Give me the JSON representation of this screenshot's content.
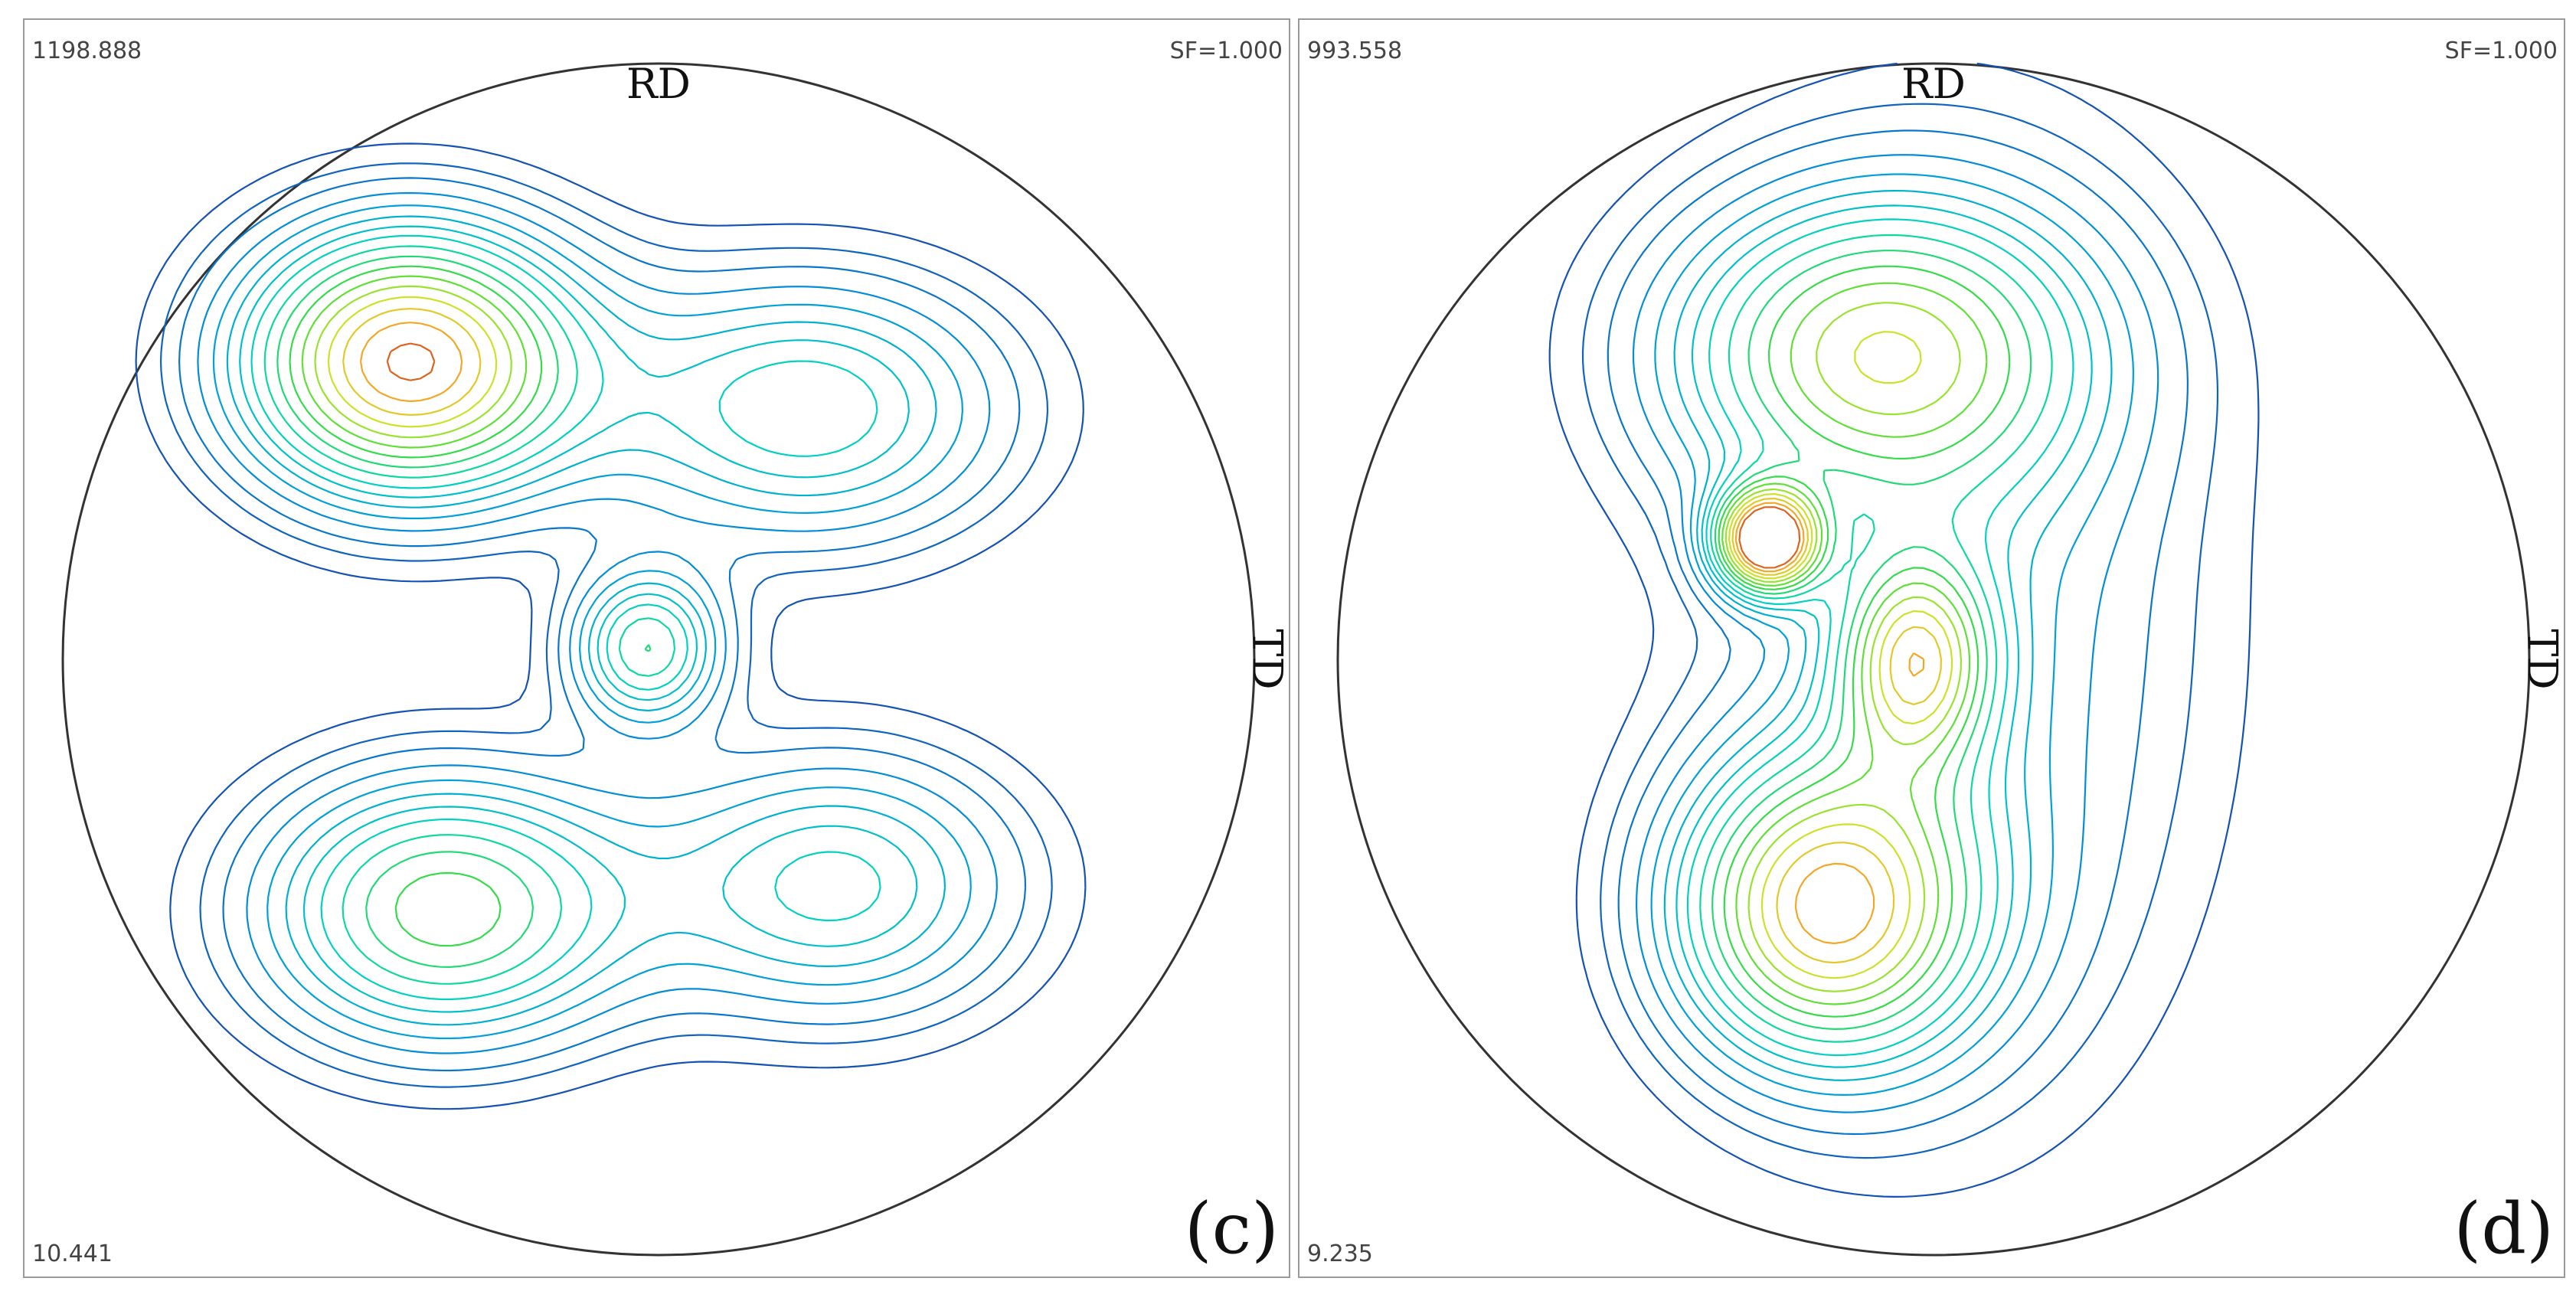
{
  "chart_data": [
    {
      "type": "pole_figure",
      "panel_label": "(c)",
      "max_value": "1198.888",
      "min_value": "10.441",
      "scale_factor": "SF=1.000",
      "axis_rd": "RD",
      "axis_td": "TD",
      "lobes": [
        {
          "x": -0.42,
          "y": 0.5,
          "sx": 0.2,
          "sy": 0.16,
          "peak": 0.95
        },
        {
          "x": 0.25,
          "y": 0.42,
          "sx": 0.24,
          "sy": 0.16,
          "peak": 0.45
        },
        {
          "x": -0.36,
          "y": -0.42,
          "sx": 0.22,
          "sy": 0.16,
          "peak": 0.62
        },
        {
          "x": 0.3,
          "y": -0.38,
          "sx": 0.22,
          "sy": 0.16,
          "peak": 0.42
        },
        {
          "x": -0.02,
          "y": 0.02,
          "sx": 0.09,
          "sy": 0.09,
          "peak": 0.5
        }
      ]
    },
    {
      "type": "pole_figure",
      "panel_label": "(d)",
      "max_value": "993.558",
      "min_value": "9.235",
      "scale_factor": "SF=1.000",
      "axis_rd": "RD",
      "axis_td": "TD",
      "lobes": [
        {
          "x": -0.1,
          "y": 0.52,
          "sx": 0.25,
          "sy": 0.18,
          "peak": 0.62
        },
        {
          "x": -0.28,
          "y": 0.2,
          "sx": 0.06,
          "sy": 0.06,
          "peak": 1.0
        },
        {
          "x": -0.18,
          "y": -0.42,
          "sx": 0.18,
          "sy": 0.18,
          "peak": 0.8
        },
        {
          "x": -0.03,
          "y": 0.0,
          "sx": 0.09,
          "sy": 0.12,
          "peak": 0.6
        },
        {
          "x": 0.05,
          "y": 0.05,
          "sx": 0.3,
          "sy": 0.55,
          "peak": 0.25
        }
      ]
    }
  ]
}
